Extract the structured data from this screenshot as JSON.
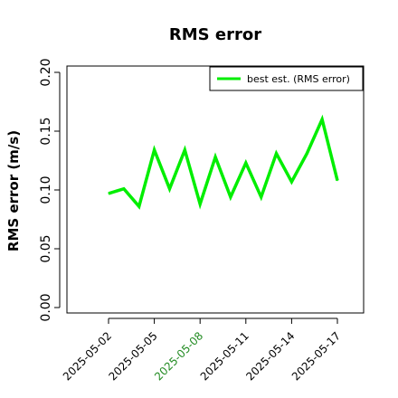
{
  "chart_data": {
    "type": "line",
    "title": "RMS error",
    "ylabel": "RMS error (m/s)",
    "xlabel": "",
    "ylim": [
      0,
      0.2
    ],
    "yticks": [
      "0.00",
      "0.05",
      "0.10",
      "0.15",
      "0.20"
    ],
    "xticks": [
      {
        "label": "2025-05-02",
        "color": "#000000"
      },
      {
        "label": "2025-05-05",
        "color": "#000000"
      },
      {
        "label": "2025-05-08",
        "color": "#228B22"
      },
      {
        "label": "2025-05-11",
        "color": "#000000"
      },
      {
        "label": "2025-05-14",
        "color": "#000000"
      },
      {
        "label": "2025-05-17",
        "color": "#000000"
      }
    ],
    "x": [
      "2025-05-02",
      "2025-05-03",
      "2025-05-04",
      "2025-05-05",
      "2025-05-06",
      "2025-05-07",
      "2025-05-08",
      "2025-05-09",
      "2025-05-10",
      "2025-05-11",
      "2025-05-12",
      "2025-05-13",
      "2025-05-14",
      "2025-05-15",
      "2025-05-16",
      "2025-05-17"
    ],
    "series": [
      {
        "name": "best est. (RMS error)",
        "color": "#00ee00",
        "values": [
          0.097,
          0.101,
          0.086,
          0.134,
          0.101,
          0.134,
          0.088,
          0.128,
          0.094,
          0.123,
          0.094,
          0.131,
          0.107,
          0.131,
          0.16,
          0.108
        ]
      }
    ],
    "legend": "top-right",
    "grid": false
  }
}
